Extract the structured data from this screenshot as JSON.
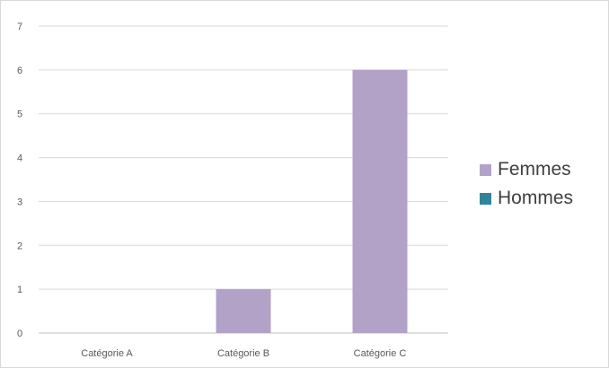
{
  "chart_data": {
    "type": "bar",
    "categories": [
      "Catégorie A",
      "Catégorie B",
      "Catégorie C"
    ],
    "series": [
      {
        "name": "Femmes",
        "values": [
          0,
          1,
          6
        ],
        "color": "#b3a2c7"
      },
      {
        "name": "Hommes",
        "values": [
          0,
          0,
          0
        ],
        "color": "#31849b"
      }
    ],
    "title": "",
    "xlabel": "",
    "ylabel": "",
    "ylim": [
      0,
      7
    ],
    "yticks": [
      "0",
      "1",
      "2",
      "3",
      "4",
      "5",
      "6",
      "7"
    ],
    "grid": true,
    "legend_position": "right"
  }
}
